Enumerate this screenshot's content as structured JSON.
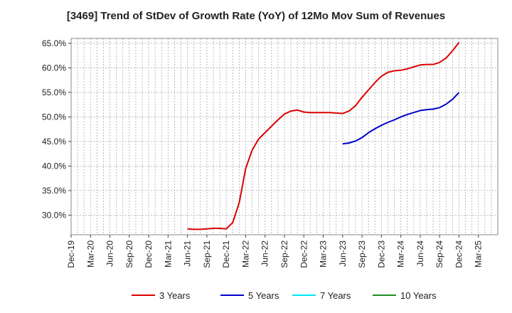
{
  "chart_data": {
    "type": "line",
    "title": "[3469]  Trend of StDev of Growth Rate (YoY) of 12Mo Mov Sum of Revenues",
    "xlabel": "",
    "ylabel": "",
    "ylim": [
      26.0,
      66.0
    ],
    "yticks": [
      30,
      35,
      40,
      45,
      50,
      55,
      60,
      65
    ],
    "ytick_labels": [
      "30.0%",
      "35.0%",
      "40.0%",
      "45.0%",
      "50.0%",
      "55.0%",
      "60.0%",
      "65.0%"
    ],
    "xlim": [
      0,
      66
    ],
    "xtick_labels": [
      "Dec-19",
      "Mar-20",
      "Jun-20",
      "Sep-20",
      "Dec-20",
      "Mar-21",
      "Jun-21",
      "Sep-21",
      "Dec-21",
      "Mar-22",
      "Jun-22",
      "Sep-22",
      "Dec-22",
      "Mar-23",
      "Jun-23",
      "Sep-23",
      "Dec-23",
      "Mar-24",
      "Jun-24",
      "Sep-24",
      "Dec-24",
      "Mar-25"
    ],
    "grid": true,
    "legend_position": "bottom",
    "series": [
      {
        "name": "3 Years",
        "color": "#dd0000",
        "x": [
          18,
          19,
          20,
          21,
          22,
          23,
          24,
          25,
          26,
          27,
          28,
          29,
          30,
          31,
          32,
          33,
          34,
          35,
          36,
          37,
          38,
          39,
          40,
          41,
          42,
          43,
          44,
          45,
          46,
          47,
          48,
          49,
          50,
          51,
          52,
          53,
          54,
          55,
          56,
          57,
          58,
          59,
          60
        ],
        "values": [
          27.2,
          27.1,
          27.1,
          27.2,
          27.3,
          27.3,
          27.2,
          28.5,
          32.5,
          39.5,
          43.2,
          45.5,
          46.8,
          48.1,
          49.4,
          50.6,
          51.2,
          51.4,
          51.0,
          50.9,
          50.9,
          50.9,
          50.9,
          50.8,
          50.7,
          51.2,
          52.3,
          54.0,
          55.5,
          57.0,
          58.3,
          59.1,
          59.4,
          59.5,
          59.8,
          60.2,
          60.6,
          60.7,
          60.7,
          61.1,
          62.0,
          63.5,
          65.2
        ]
      },
      {
        "name": "5 Years",
        "color": "#0000cc",
        "x": [
          42,
          43,
          44,
          45,
          46,
          47,
          48,
          49,
          50,
          51,
          52,
          53,
          54,
          55,
          56,
          57,
          58,
          59,
          60
        ],
        "values": [
          44.5,
          44.7,
          45.1,
          45.8,
          46.8,
          47.6,
          48.3,
          48.9,
          49.4,
          50.0,
          50.5,
          50.9,
          51.3,
          51.5,
          51.6,
          51.9,
          52.6,
          53.6,
          55.0
        ]
      },
      {
        "name": "7 Years",
        "color": "#00e5ee",
        "x": [],
        "values": []
      },
      {
        "name": "10 Years",
        "color": "#228b22",
        "x": [],
        "values": []
      }
    ]
  }
}
